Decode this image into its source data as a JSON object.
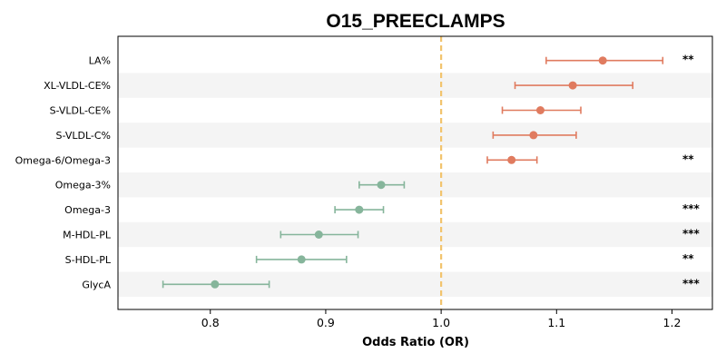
{
  "chart_data": {
    "type": "forest",
    "title": "O15_PREECLAMPS",
    "xlabel": "Odds Ratio (OR)",
    "ylabel": "",
    "xlim": [
      0.72,
      1.235
    ],
    "xticks": [
      0.8,
      0.9,
      1.0,
      1.1,
      1.2
    ],
    "xtick_labels": [
      "0.8",
      "0.9",
      "1.0",
      "1.1",
      "1.2"
    ],
    "reference_line": 1.0,
    "grid": false,
    "colors": {
      "positive": "#e07b5f",
      "negative": "#86b59b",
      "reference": "#f2c46d",
      "band": "#f4f4f4"
    },
    "rows": [
      {
        "label": "LA%",
        "or": 1.14,
        "ci": [
          1.091,
          1.192
        ],
        "sig": "**"
      },
      {
        "label": "XL-VLDL-CE%",
        "or": 1.114,
        "ci": [
          1.064,
          1.166
        ],
        "sig": ""
      },
      {
        "label": "S-VLDL-CE%",
        "or": 1.086,
        "ci": [
          1.053,
          1.121
        ],
        "sig": ""
      },
      {
        "label": "S-VLDL-C%",
        "or": 1.08,
        "ci": [
          1.045,
          1.117
        ],
        "sig": ""
      },
      {
        "label": "Omega-6/Omega-3",
        "or": 1.061,
        "ci": [
          1.04,
          1.083
        ],
        "sig": "**"
      },
      {
        "label": "Omega-3%",
        "or": 0.948,
        "ci": [
          0.929,
          0.968
        ],
        "sig": ""
      },
      {
        "label": "Omega-3",
        "or": 0.929,
        "ci": [
          0.908,
          0.95
        ],
        "sig": "***"
      },
      {
        "label": "M-HDL-PL",
        "or": 0.894,
        "ci": [
          0.861,
          0.928
        ],
        "sig": "***"
      },
      {
        "label": "S-HDL-PL",
        "or": 0.879,
        "ci": [
          0.84,
          0.918
        ],
        "sig": "**"
      },
      {
        "label": "GlycA",
        "or": 0.804,
        "ci": [
          0.759,
          0.851
        ],
        "sig": "***"
      }
    ]
  }
}
